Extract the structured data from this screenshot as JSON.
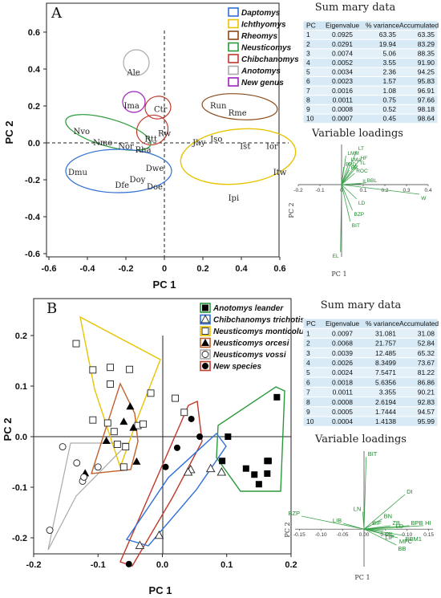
{
  "chart_data": [
    {
      "type": "scatter",
      "panel_label": "A",
      "xlabel": "PC 1",
      "ylabel": "PC 2",
      "xlim": [
        -0.62,
        0.62
      ],
      "ylim": [
        -0.62,
        0.62
      ],
      "x_ticks": [
        "-0.6",
        "-0.4",
        "-0.2",
        "0",
        "0.2",
        "0.4",
        "0.6"
      ],
      "y_ticks": [
        "0.6",
        "0.4",
        "0.2",
        "0.0",
        "-0.2",
        "-0.4",
        "-0.6"
      ],
      "legend": [
        {
          "name": "Daptomys",
          "color": "#2e6fd6"
        },
        {
          "name": "Ichthyomys",
          "color": "#e8c400"
        },
        {
          "name": "Rheomys",
          "color": "#8a4a1a"
        },
        {
          "name": "Neusticomys",
          "color": "#2a9a3a"
        },
        {
          "name": "Chibchanomys",
          "color": "#c0392b"
        },
        {
          "name": "Anotomys",
          "color": "#aaaaaa"
        },
        {
          "name": "New genus",
          "color": "#a020c0"
        }
      ],
      "group_labels": [
        {
          "label": "Ale",
          "x": -0.16,
          "y": 0.38
        },
        {
          "label": "Ima",
          "x": -0.17,
          "y": 0.2
        },
        {
          "label": "Ctr",
          "x": -0.02,
          "y": 0.18
        },
        {
          "label": "Run",
          "x": 0.28,
          "y": 0.2
        },
        {
          "label": "Rme",
          "x": 0.38,
          "y": 0.16
        },
        {
          "label": "Nvo",
          "x": -0.43,
          "y": 0.06
        },
        {
          "label": "Nmo",
          "x": -0.32,
          "y": 0.0
        },
        {
          "label": "Rw",
          "x": 0.0,
          "y": 0.05
        },
        {
          "label": "Rtt",
          "x": -0.07,
          "y": 0.02
        },
        {
          "label": "Nor",
          "x": -0.2,
          "y": -0.02
        },
        {
          "label": "Rha",
          "x": -0.11,
          "y": -0.04
        },
        {
          "label": "Jhy",
          "x": 0.18,
          "y": 0.0
        },
        {
          "label": "Iso",
          "x": 0.27,
          "y": 0.02
        },
        {
          "label": "Ist",
          "x": 0.42,
          "y": -0.02
        },
        {
          "label": "Ior",
          "x": 0.56,
          "y": -0.02
        },
        {
          "label": "Itw",
          "x": 0.6,
          "y": -0.16
        },
        {
          "label": "Ipi",
          "x": 0.36,
          "y": -0.3
        },
        {
          "label": "Dmu",
          "x": -0.45,
          "y": -0.16
        },
        {
          "label": "Doy",
          "x": -0.14,
          "y": -0.2
        },
        {
          "label": "Dfe",
          "x": -0.22,
          "y": -0.23
        },
        {
          "label": "Dwe",
          "x": -0.05,
          "y": -0.14
        },
        {
          "label": "Doe",
          "x": -0.05,
          "y": -0.24
        }
      ]
    },
    {
      "type": "scatter",
      "panel_label": "B",
      "xlabel": "PC 1",
      "ylabel": "PC 2",
      "xlim": [
        -0.2,
        0.2
      ],
      "ylim": [
        -0.24,
        0.2
      ],
      "x_ticks": [
        "-0.2",
        "-0.1",
        "0.0",
        "0.1",
        "0.2"
      ],
      "y_ticks": [
        "0.2",
        "0.1",
        "0.0",
        "-0.1",
        "-0.2"
      ],
      "legend": [
        {
          "name": "Anotomys leander",
          "color": "#2a9a3a"
        },
        {
          "name": "Chibchanomys trichotis",
          "color": "#2e6fd6"
        },
        {
          "name": "Neusticomys monticolus",
          "color": "#e8c400"
        },
        {
          "name": "Neusticomys orcesi",
          "color": "#c0602b"
        },
        {
          "name": "Neusticomys vossi",
          "color": "#aaaaaa"
        },
        {
          "name": "New species",
          "color": "#c0392b"
        }
      ],
      "series": [
        {
          "name": "Anotomys leander",
          "marker": "filled-square",
          "points": [
            [
              0.178,
              0.078
            ],
            [
              0.102,
              0.0
            ],
            [
              0.093,
              -0.048
            ],
            [
              0.143,
              -0.075
            ],
            [
              0.163,
              -0.073
            ],
            [
              0.13,
              -0.063
            ],
            [
              0.163,
              -0.048
            ],
            [
              0.165,
              -0.048
            ],
            [
              0.15,
              -0.094
            ]
          ]
        },
        {
          "name": "Chibchanomys trichotis",
          "marker": "open-triangle",
          "points": [
            [
              0.092,
              -0.07
            ],
            [
              0.075,
              -0.063
            ],
            [
              0.044,
              -0.065
            ],
            [
              0.04,
              -0.07
            ],
            [
              -0.005,
              -0.195
            ],
            [
              -0.035,
              -0.215
            ]
          ]
        },
        {
          "name": "Neusticomys monticolus",
          "marker": "open-square",
          "points": [
            [
              -0.134,
              0.184
            ],
            [
              -0.108,
              0.132
            ],
            [
              -0.081,
              0.137
            ],
            [
              -0.051,
              0.133
            ],
            [
              -0.081,
              0.104
            ],
            [
              -0.018,
              0.086
            ],
            [
              -0.085,
              0.027
            ],
            [
              -0.108,
              0.033
            ],
            [
              -0.075,
              0.01
            ],
            [
              -0.038,
              0.022
            ],
            [
              -0.03,
              0.025
            ],
            [
              0.02,
              0.076
            ],
            [
              -0.07,
              -0.015
            ],
            [
              0.034,
              0.048
            ],
            [
              -0.057,
              -0.02
            ],
            [
              -0.06,
              -0.06
            ]
          ]
        },
        {
          "name": "Neusticomys orcesi",
          "marker": "filled-triangle",
          "points": [
            [
              -0.05,
              0.06
            ],
            [
              -0.06,
              0.03
            ],
            [
              -0.045,
              0.018
            ],
            [
              -0.087,
              -0.008
            ],
            [
              -0.12,
              -0.072
            ],
            [
              -0.04,
              -0.049
            ]
          ]
        },
        {
          "name": "Neusticomys vossi",
          "marker": "open-circle",
          "points": [
            [
              -0.155,
              -0.02
            ],
            [
              -0.124,
              -0.088
            ],
            [
              -0.1,
              -0.06
            ],
            [
              -0.133,
              -0.052
            ],
            [
              -0.175,
              -0.185
            ],
            [
              -0.122,
              -0.08
            ]
          ]
        },
        {
          "name": "New species",
          "marker": "filled-circle",
          "points": [
            [
              0.045,
              0.035
            ],
            [
              0.058,
              0.0
            ],
            [
              0.023,
              -0.022
            ],
            [
              -0.052,
              -0.252
            ],
            [
              0.005,
              -0.06
            ]
          ]
        }
      ]
    }
  ],
  "summary_tables": [
    {
      "title": "Sum mary data",
      "headers": [
        "PC",
        "Eigenvalue",
        "% variance",
        "Accumulated"
      ],
      "rows": [
        [
          "1",
          "0.0925",
          "63.35",
          "63.35"
        ],
        [
          "2",
          "0.0291",
          "19.94",
          "83.29"
        ],
        [
          "3",
          "0.0074",
          "5.06",
          "88.35"
        ],
        [
          "4",
          "0.0052",
          "3.55",
          "91.90"
        ],
        [
          "5",
          "0.0034",
          "2.36",
          "94.25"
        ],
        [
          "6",
          "0.0023",
          "1.57",
          "95.83"
        ],
        [
          "7",
          "0.0016",
          "1.08",
          "96.91"
        ],
        [
          "8",
          "0.0011",
          "0.75",
          "97.66"
        ],
        [
          "9",
          "0.0008",
          "0.52",
          "98.18"
        ],
        [
          "10",
          "0.0007",
          "0.45",
          "98.64"
        ]
      ]
    },
    {
      "title": "Sum mary data",
      "headers": [
        "PC",
        "Eigenvalue",
        "% variance",
        "Accumulated"
      ],
      "rows": [
        [
          "1",
          "0.0097",
          "31.081",
          "31.08"
        ],
        [
          "2",
          "0.0068",
          "21.757",
          "52.84"
        ],
        [
          "3",
          "0.0039",
          "12.485",
          "65.32"
        ],
        [
          "4",
          "0.0026",
          "8.3499",
          "73.67"
        ],
        [
          "5",
          "0.0024",
          "7.5471",
          "81.22"
        ],
        [
          "6",
          "0.0018",
          "5.6356",
          "86.86"
        ],
        [
          "7",
          "0.0011",
          "3.355",
          "90.21"
        ],
        [
          "8",
          "0.0008",
          "2.6194",
          "92.83"
        ],
        [
          "9",
          "0.0005",
          "1.7444",
          "94.57"
        ],
        [
          "10",
          "0.0004",
          "1.4138",
          "95.99"
        ]
      ]
    }
  ],
  "loadings": [
    {
      "title": "Variable loadings",
      "xlabel": "PC 1",
      "ylabel": "PC 2",
      "xlim": [
        -0.2,
        0.4
      ],
      "ylim": [
        -0.45,
        0.25
      ],
      "x_ticks": [
        "-0.2",
        "-0.1",
        "0",
        "0.1",
        "0.2",
        "0.3",
        "0.4"
      ],
      "vectors": [
        {
          "label": "LT",
          "x": 0.07,
          "y": 0.21
        },
        {
          "label": "LMM",
          "x": 0.02,
          "y": 0.18
        },
        {
          "label": "HF",
          "x": 0.08,
          "y": 0.15
        },
        {
          "label": "LMa",
          "x": 0.035,
          "y": 0.14
        },
        {
          "label": "TL",
          "x": 0.075,
          "y": 0.12
        },
        {
          "label": "BPD",
          "x": 0.01,
          "y": 0.11
        },
        {
          "label": "BB",
          "x": 0.035,
          "y": 0.09
        },
        {
          "label": "ROC",
          "x": 0.06,
          "y": 0.07
        },
        {
          "label": "IL",
          "x": 0.09,
          "y": 0.005
        },
        {
          "label": "BBL",
          "x": 0.11,
          "y": 0.01
        },
        {
          "label": "W",
          "x": 0.36,
          "y": -0.06
        },
        {
          "label": "LD",
          "x": 0.07,
          "y": -0.09
        },
        {
          "label": "BZP",
          "x": 0.05,
          "y": -0.16
        },
        {
          "label": "BIT",
          "x": 0.04,
          "y": -0.23
        },
        {
          "label": "EL",
          "x": -0.005,
          "y": -0.42
        }
      ]
    },
    {
      "title": "Variable loadings",
      "xlabel": "PC 1",
      "ylabel": "PC 2",
      "xlim": [
        -0.16,
        0.16
      ],
      "ylim": [
        -0.13,
        0.27
      ],
      "x_ticks": [
        "-0.15",
        "-0.10",
        "-0.05",
        "0.00",
        "0.05",
        "0.10",
        "0.15"
      ],
      "vectors": [
        {
          "label": "BIT",
          "x": 0.005,
          "y": 0.25
        },
        {
          "label": "DI",
          "x": 0.095,
          "y": 0.12
        },
        {
          "label": "BZP",
          "x": -0.145,
          "y": 0.045
        },
        {
          "label": "LIB",
          "x": -0.048,
          "y": 0.02
        },
        {
          "label": "LN",
          "x": -0.003,
          "y": 0.06
        },
        {
          "label": "BN",
          "x": 0.042,
          "y": 0.035
        },
        {
          "label": "HI",
          "x": 0.138,
          "y": 0.012
        },
        {
          "label": "BPB",
          "x": 0.105,
          "y": 0.012
        },
        {
          "label": "BIF",
          "x": 0.015,
          "y": 0.012
        },
        {
          "label": "ZB",
          "x": 0.062,
          "y": 0.012
        },
        {
          "label": "LD",
          "x": 0.07,
          "y": 0.0
        },
        {
          "label": "CIL",
          "x": 0.045,
          "y": -0.005
        },
        {
          "label": "LIF",
          "x": 0.045,
          "y": -0.016
        },
        {
          "label": "BBM1",
          "x": 0.092,
          "y": -0.022
        },
        {
          "label": "MFC",
          "x": 0.078,
          "y": -0.03
        },
        {
          "label": "BB",
          "x": 0.075,
          "y": -0.055
        }
      ]
    }
  ]
}
